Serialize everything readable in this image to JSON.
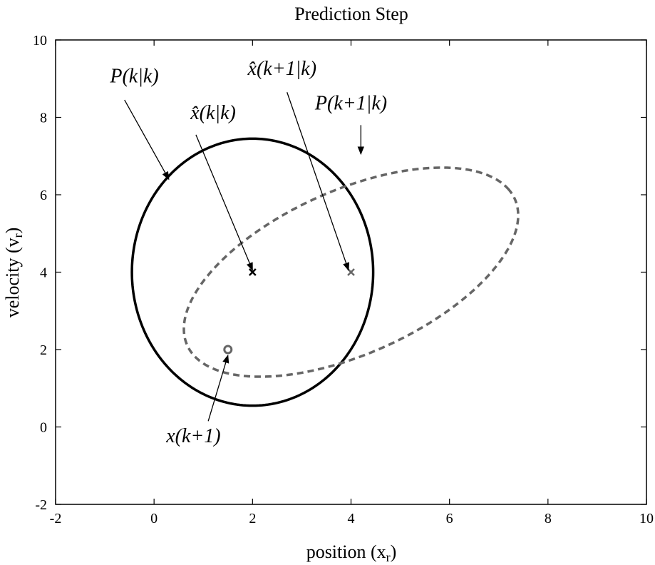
{
  "chart_data": {
    "type": "scatter",
    "title": "Prediction Step",
    "xlabel": "position (x",
    "xlabel_sub": "r",
    "xlabel_close": ")",
    "ylabel": "velocity (v",
    "ylabel_sub": "r",
    "ylabel_close": ")",
    "xlim": [
      -2,
      10
    ],
    "ylim": [
      -2,
      10
    ],
    "xticks": [
      -2,
      0,
      2,
      4,
      6,
      8,
      10
    ],
    "yticks": [
      -2,
      0,
      2,
      4,
      6,
      8,
      10
    ],
    "grid": false,
    "colors": {
      "prior": "#000000",
      "predicted": "#666666"
    },
    "ellipses": [
      {
        "key": "prior",
        "center": [
          2,
          4
        ],
        "semi_axes": [
          2.45,
          3.45
        ],
        "angle_deg": 0,
        "style": "solid"
      },
      {
        "key": "predicted",
        "center": [
          4.0,
          4.0
        ],
        "semi_axes": [
          3.85,
          2.0
        ],
        "angle_deg": 33.5,
        "style": "dashed"
      }
    ],
    "points": [
      {
        "key": "prior_estimate",
        "x": 2,
        "y": 4,
        "marker": "x"
      },
      {
        "key": "predicted_estimate",
        "x": 4,
        "y": 4,
        "marker": "x"
      },
      {
        "key": "true_state",
        "x": 1.5,
        "y": 2,
        "marker": "o"
      }
    ],
    "annotations": [
      {
        "text": "P(k|k)",
        "text_pos": [
          -0.4,
          8.9
        ],
        "arrow_from": [
          -0.6,
          8.45
        ],
        "arrow_to": [
          0.3,
          6.4
        ]
      },
      {
        "text": "x̂(k|k)",
        "text_pos": [
          1.2,
          7.95
        ],
        "arrow_from": [
          0.85,
          7.55
        ],
        "arrow_to": [
          2.0,
          4.05
        ]
      },
      {
        "text": "x̂(k+1|k)",
        "text_pos": [
          2.6,
          9.1
        ],
        "arrow_from": [
          2.7,
          8.65
        ],
        "arrow_to": [
          3.95,
          4.05
        ]
      },
      {
        "text": "P(k+1|k)",
        "text_pos": [
          4.0,
          8.2
        ],
        "arrow_from": [
          4.2,
          7.8
        ],
        "arrow_to": [
          4.2,
          7.05
        ]
      },
      {
        "text": "x(k+1)",
        "text_pos": [
          0.8,
          -0.4
        ],
        "arrow_from": [
          1.1,
          0.15
        ],
        "arrow_to": [
          1.5,
          1.85
        ]
      }
    ]
  }
}
